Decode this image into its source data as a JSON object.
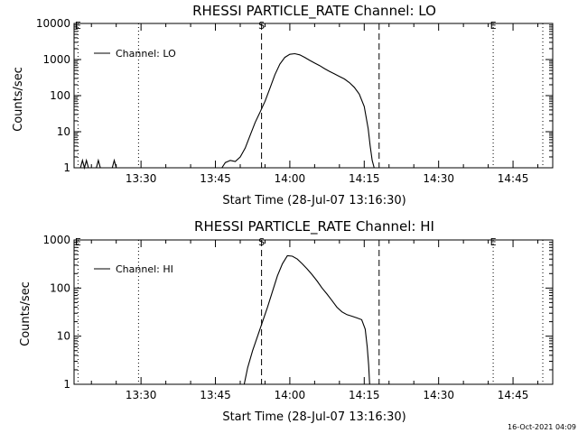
{
  "timestamp": "16-Oct-2021 04:09",
  "chart_data": [
    {
      "type": "line",
      "title": "RHESSI PARTICLE_RATE Channel: LO",
      "xlabel": "Start Time (28-Jul-07 13:16:30)",
      "ylabel": "Counts/sec",
      "yscale": "log",
      "xlim": [
        16.5,
        113
      ],
      "ylim": [
        1,
        10000
      ],
      "xticks": [
        {
          "v": 30,
          "label": "13:30"
        },
        {
          "v": 45,
          "label": "13:45"
        },
        {
          "v": 60,
          "label": "14:00"
        },
        {
          "v": 75,
          "label": "14:15"
        },
        {
          "v": 90,
          "label": "14:30"
        },
        {
          "v": 105,
          "label": "14:45"
        }
      ],
      "yticks": [
        {
          "v": 1,
          "label": "1"
        },
        {
          "v": 10,
          "label": "10"
        },
        {
          "v": 100,
          "label": "100"
        },
        {
          "v": 1000,
          "label": "1000"
        },
        {
          "v": 10000,
          "label": "10000"
        }
      ],
      "legend": {
        "label": "Channel: LO",
        "position": "top-left"
      },
      "markers": [
        {
          "x": 17.3,
          "style": "dotted",
          "label": "E"
        },
        {
          "x": 29.5,
          "style": "dotted",
          "label": ""
        },
        {
          "x": 54.3,
          "style": "dashed",
          "label": "S"
        },
        {
          "x": 78.0,
          "style": "dashed",
          "label": ""
        },
        {
          "x": 101.0,
          "style": "dotted",
          "label": "E"
        },
        {
          "x": 111.0,
          "style": "dotted",
          "label": ""
        }
      ],
      "series": [
        {
          "name": "Channel: LO",
          "segments": [
            [
              [
                17.8,
                1
              ],
              [
                18.2,
                1.6
              ],
              [
                18.6,
                1
              ],
              [
                19.0,
                1.6
              ],
              [
                19.4,
                1
              ]
            ],
            [
              [
                21.0,
                1
              ],
              [
                21.4,
                1.6
              ],
              [
                21.8,
                1
              ]
            ],
            [
              [
                24.2,
                1
              ],
              [
                24.6,
                1.6
              ],
              [
                25.0,
                1
              ]
            ],
            [
              [
                46.3,
                1
              ],
              [
                47,
                1.4
              ],
              [
                48,
                1.6
              ],
              [
                49,
                1.5
              ],
              [
                50,
                2
              ],
              [
                51,
                3.5
              ],
              [
                52,
                8
              ],
              [
                53,
                18
              ],
              [
                54,
                35
              ],
              [
                55,
                70
              ],
              [
                56,
                160
              ],
              [
                57,
                380
              ],
              [
                58,
                750
              ],
              [
                59,
                1150
              ],
              [
                60,
                1400
              ],
              [
                61,
                1450
              ],
              [
                62,
                1350
              ],
              [
                63,
                1150
              ],
              [
                64,
                950
              ],
              [
                65,
                800
              ],
              [
                66,
                680
              ],
              [
                67,
                560
              ],
              [
                68,
                470
              ],
              [
                69,
                400
              ],
              [
                70,
                340
              ],
              [
                71,
                290
              ],
              [
                72,
                230
              ],
              [
                73,
                170
              ],
              [
                74,
                110
              ],
              [
                75,
                50
              ],
              [
                75.8,
                12
              ],
              [
                76.2,
                4
              ],
              [
                76.6,
                1.6
              ],
              [
                77,
                1
              ]
            ]
          ]
        }
      ]
    },
    {
      "type": "line",
      "title": "RHESSI PARTICLE_RATE Channel: HI",
      "xlabel": "Start Time (28-Jul-07 13:16:30)",
      "ylabel": "Counts/sec",
      "yscale": "log",
      "xlim": [
        16.5,
        113
      ],
      "ylim": [
        1,
        1000
      ],
      "xticks": [
        {
          "v": 30,
          "label": "13:30"
        },
        {
          "v": 45,
          "label": "13:45"
        },
        {
          "v": 60,
          "label": "14:00"
        },
        {
          "v": 75,
          "label": "14:15"
        },
        {
          "v": 90,
          "label": "14:30"
        },
        {
          "v": 105,
          "label": "14:45"
        }
      ],
      "yticks": [
        {
          "v": 1,
          "label": "1"
        },
        {
          "v": 10,
          "label": "10"
        },
        {
          "v": 100,
          "label": "100"
        },
        {
          "v": 1000,
          "label": "1000"
        }
      ],
      "legend": {
        "label": "Channel: HI",
        "position": "top-left"
      },
      "markers": [
        {
          "x": 17.3,
          "style": "dotted",
          "label": "E"
        },
        {
          "x": 29.5,
          "style": "dotted",
          "label": ""
        },
        {
          "x": 54.3,
          "style": "dashed",
          "label": "S"
        },
        {
          "x": 78.0,
          "style": "dashed",
          "label": ""
        },
        {
          "x": 101.0,
          "style": "dotted",
          "label": "E"
        },
        {
          "x": 111.0,
          "style": "dotted",
          "label": ""
        }
      ],
      "series": [
        {
          "name": "Channel: HI",
          "segments": [
            [
              [
                50.8,
                1
              ],
              [
                51.5,
                2.2
              ],
              [
                52.5,
                5
              ],
              [
                53.5,
                10
              ],
              [
                54.5,
                20
              ],
              [
                55.5,
                40
              ],
              [
                56.5,
                85
              ],
              [
                57.5,
                180
              ],
              [
                58.5,
                320
              ],
              [
                59.5,
                470
              ],
              [
                60.5,
                460
              ],
              [
                61.5,
                400
              ],
              [
                62.5,
                320
              ],
              [
                63.5,
                250
              ],
              [
                64.5,
                190
              ],
              [
                65.5,
                140
              ],
              [
                66.5,
                100
              ],
              [
                67.5,
                75
              ],
              [
                68.5,
                55
              ],
              [
                69.5,
                40
              ],
              [
                70.5,
                32
              ],
              [
                71.5,
                28
              ],
              [
                72.5,
                26
              ],
              [
                73.5,
                24
              ],
              [
                74.5,
                22
              ],
              [
                75.2,
                14
              ],
              [
                75.6,
                6
              ],
              [
                75.9,
                2.5
              ],
              [
                76.1,
                1
              ]
            ]
          ]
        }
      ]
    }
  ]
}
